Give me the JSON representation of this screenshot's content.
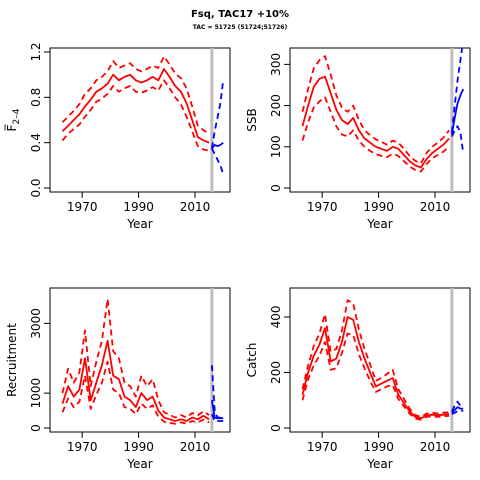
{
  "header": {
    "title": "Fsq, TAC17 +10%",
    "subtitle": "TAC = 51725 (51724;51726)"
  },
  "colors": {
    "historic": "#ff0000",
    "projection": "#0000ff",
    "divider": "#bebebe"
  },
  "chart_data": [
    {
      "type": "line",
      "panel": "top-left",
      "xlabel": "Year",
      "ylabel": "F̅",
      "ylabel_sub": "2–4",
      "xlim": [
        1960,
        2021
      ],
      "ylim": [
        0,
        1.2
      ],
      "xticks": [
        1970,
        1990,
        2010
      ],
      "yticks": [
        0.0,
        0.4,
        0.8,
        1.2
      ],
      "ytick_labels": [
        "0.0",
        "0.4",
        "0.8",
        "1.2"
      ],
      "divider_x": 2016,
      "historic": {
        "x": [
          1963,
          1965,
          1967,
          1969,
          1971,
          1973,
          1975,
          1977,
          1979,
          1981,
          1983,
          1985,
          1987,
          1989,
          1991,
          1993,
          1995,
          1997,
          1999,
          2001,
          2003,
          2005,
          2007,
          2009,
          2011,
          2013,
          2015
        ],
        "mid": [
          0.5,
          0.55,
          0.6,
          0.65,
          0.72,
          0.78,
          0.85,
          0.88,
          0.92,
          1.0,
          0.95,
          0.98,
          1.0,
          0.95,
          0.93,
          0.95,
          0.98,
          0.95,
          1.05,
          0.98,
          0.9,
          0.85,
          0.75,
          0.6,
          0.45,
          0.42,
          0.4
        ],
        "low": [
          0.42,
          0.48,
          0.52,
          0.56,
          0.63,
          0.69,
          0.76,
          0.79,
          0.83,
          0.9,
          0.85,
          0.88,
          0.9,
          0.85,
          0.84,
          0.86,
          0.89,
          0.86,
          0.95,
          0.88,
          0.8,
          0.74,
          0.63,
          0.5,
          0.37,
          0.34,
          0.33
        ],
        "high": [
          0.58,
          0.63,
          0.68,
          0.74,
          0.83,
          0.88,
          0.95,
          0.98,
          1.03,
          1.12,
          1.06,
          1.08,
          1.1,
          1.05,
          1.03,
          1.05,
          1.08,
          1.06,
          1.16,
          1.09,
          1.01,
          0.97,
          0.88,
          0.72,
          0.55,
          0.51,
          0.48
        ]
      },
      "projection": {
        "x": [
          2016,
          2017,
          2018,
          2019,
          2020
        ],
        "mid": [
          0.35,
          0.38,
          0.37,
          0.38,
          0.4
        ],
        "low": [
          0.35,
          0.3,
          0.25,
          0.2,
          0.12
        ],
        "high": [
          0.35,
          0.5,
          0.62,
          0.75,
          0.95
        ]
      }
    },
    {
      "type": "line",
      "panel": "top-right",
      "xlabel": "Year",
      "ylabel": "SSB",
      "xlim": [
        1960,
        2021
      ],
      "ylim": [
        0,
        330
      ],
      "xticks": [
        1970,
        1990,
        2010
      ],
      "yticks": [
        0,
        100,
        200,
        300
      ],
      "ytick_labels": [
        "0",
        "100",
        "200",
        "300"
      ],
      "divider_x": 2016,
      "historic": {
        "x": [
          1963,
          1965,
          1967,
          1969,
          1971,
          1973,
          1975,
          1977,
          1979,
          1981,
          1983,
          1985,
          1987,
          1989,
          1991,
          1993,
          1995,
          1997,
          1999,
          2001,
          2003,
          2005,
          2007,
          2009,
          2011,
          2013,
          2015
        ],
        "mid": [
          150,
          200,
          245,
          265,
          270,
          230,
          190,
          165,
          155,
          170,
          140,
          120,
          110,
          100,
          95,
          90,
          100,
          95,
          80,
          65,
          55,
          50,
          70,
          85,
          95,
          105,
          120
        ],
        "low": [
          115,
          160,
          195,
          210,
          220,
          185,
          150,
          130,
          125,
          140,
          115,
          100,
          90,
          82,
          78,
          75,
          83,
          78,
          65,
          52,
          44,
          40,
          58,
          72,
          80,
          88,
          100
        ],
        "high": [
          185,
          240,
          290,
          310,
          320,
          275,
          225,
          195,
          185,
          200,
          165,
          140,
          128,
          118,
          112,
          105,
          115,
          110,
          95,
          78,
          66,
          60,
          85,
          100,
          110,
          122,
          140
        ]
      },
      "projection": {
        "x": [
          2016,
          2017,
          2018,
          2019,
          2020
        ],
        "mid": [
          130,
          170,
          205,
          225,
          240
        ],
        "low": [
          125,
          140,
          150,
          135,
          85
        ],
        "high": [
          135,
          200,
          260,
          310,
          360
        ]
      }
    },
    {
      "type": "line",
      "panel": "bottom-left",
      "xlabel": "Year",
      "ylabel": "Recruitment",
      "xlim": [
        1960,
        2021
      ],
      "ylim": [
        0,
        3900
      ],
      "xticks": [
        1970,
        1990,
        2010
      ],
      "yticks": [
        0,
        1000,
        3000
      ],
      "ytick_labels": [
        "0",
        "1000",
        "3000"
      ],
      "divider_x": 2016,
      "historic": {
        "x": [
          1963,
          1965,
          1967,
          1969,
          1971,
          1973,
          1975,
          1977,
          1979,
          1981,
          1983,
          1985,
          1987,
          1989,
          1991,
          1993,
          1995,
          1997,
          1999,
          2001,
          2003,
          2005,
          2007,
          2009,
          2011,
          2013,
          2015
        ],
        "mid": [
          700,
          1200,
          900,
          1100,
          2000,
          800,
          1300,
          1800,
          2500,
          1500,
          1400,
          900,
          800,
          600,
          1000,
          800,
          900,
          500,
          300,
          250,
          200,
          250,
          200,
          300,
          250,
          350,
          250
        ],
        "low": [
          450,
          850,
          600,
          750,
          1500,
          550,
          950,
          1300,
          1900,
          1100,
          1000,
          600,
          550,
          400,
          700,
          550,
          650,
          320,
          180,
          150,
          120,
          160,
          130,
          200,
          160,
          240,
          160
        ],
        "high": [
          1000,
          1700,
          1300,
          1600,
          2800,
          1200,
          1900,
          2500,
          3700,
          2200,
          2000,
          1300,
          1200,
          900,
          1500,
          1200,
          1400,
          800,
          450,
          380,
          300,
          370,
          300,
          430,
          360,
          480,
          370
        ]
      },
      "projection": {
        "x": [
          2016,
          2017,
          2018,
          2019,
          2020
        ],
        "mid": [
          800,
          300,
          280,
          280,
          280
        ],
        "low": [
          400,
          200,
          200,
          200,
          200
        ],
        "high": [
          1800,
          500,
          300,
          300,
          300
        ]
      }
    },
    {
      "type": "line",
      "panel": "bottom-right",
      "xlabel": "Year",
      "ylabel": "Catch",
      "xlim": [
        1960,
        2021
      ],
      "ylim": [
        0,
        490
      ],
      "xticks": [
        1970,
        1990,
        2010
      ],
      "yticks": [
        0,
        200,
        400
      ],
      "ytick_labels": [
        "0",
        "200",
        "400"
      ],
      "divider_x": 2016,
      "historic": {
        "x": [
          1963,
          1965,
          1967,
          1969,
          1971,
          1973,
          1975,
          1977,
          1979,
          1981,
          1983,
          1985,
          1987,
          1989,
          1991,
          1993,
          1995,
          1997,
          1999,
          2001,
          2003,
          2005,
          2007,
          2009,
          2011,
          2013,
          2015
        ],
        "mid": [
          120,
          200,
          260,
          300,
          360,
          240,
          250,
          310,
          400,
          390,
          310,
          250,
          200,
          150,
          160,
          170,
          180,
          120,
          90,
          60,
          40,
          35,
          45,
          48,
          46,
          48,
          50
        ],
        "low": [
          100,
          175,
          225,
          260,
          310,
          210,
          215,
          270,
          340,
          335,
          265,
          215,
          170,
          130,
          140,
          150,
          155,
          105,
          78,
          52,
          34,
          30,
          40,
          42,
          40,
          42,
          44
        ],
        "high": [
          140,
          225,
          295,
          340,
          410,
          275,
          285,
          350,
          460,
          450,
          355,
          285,
          230,
          170,
          180,
          195,
          210,
          140,
          105,
          70,
          47,
          40,
          52,
          55,
          52,
          55,
          57
        ]
      },
      "projection": {
        "x": [
          2016,
          2017,
          2018,
          2019,
          2020
        ],
        "mid": [
          55,
          65,
          75,
          70,
          70
        ],
        "low": [
          50,
          55,
          60,
          62,
          62
        ],
        "high": [
          60,
          80,
          95,
          80,
          75
        ]
      }
    }
  ]
}
